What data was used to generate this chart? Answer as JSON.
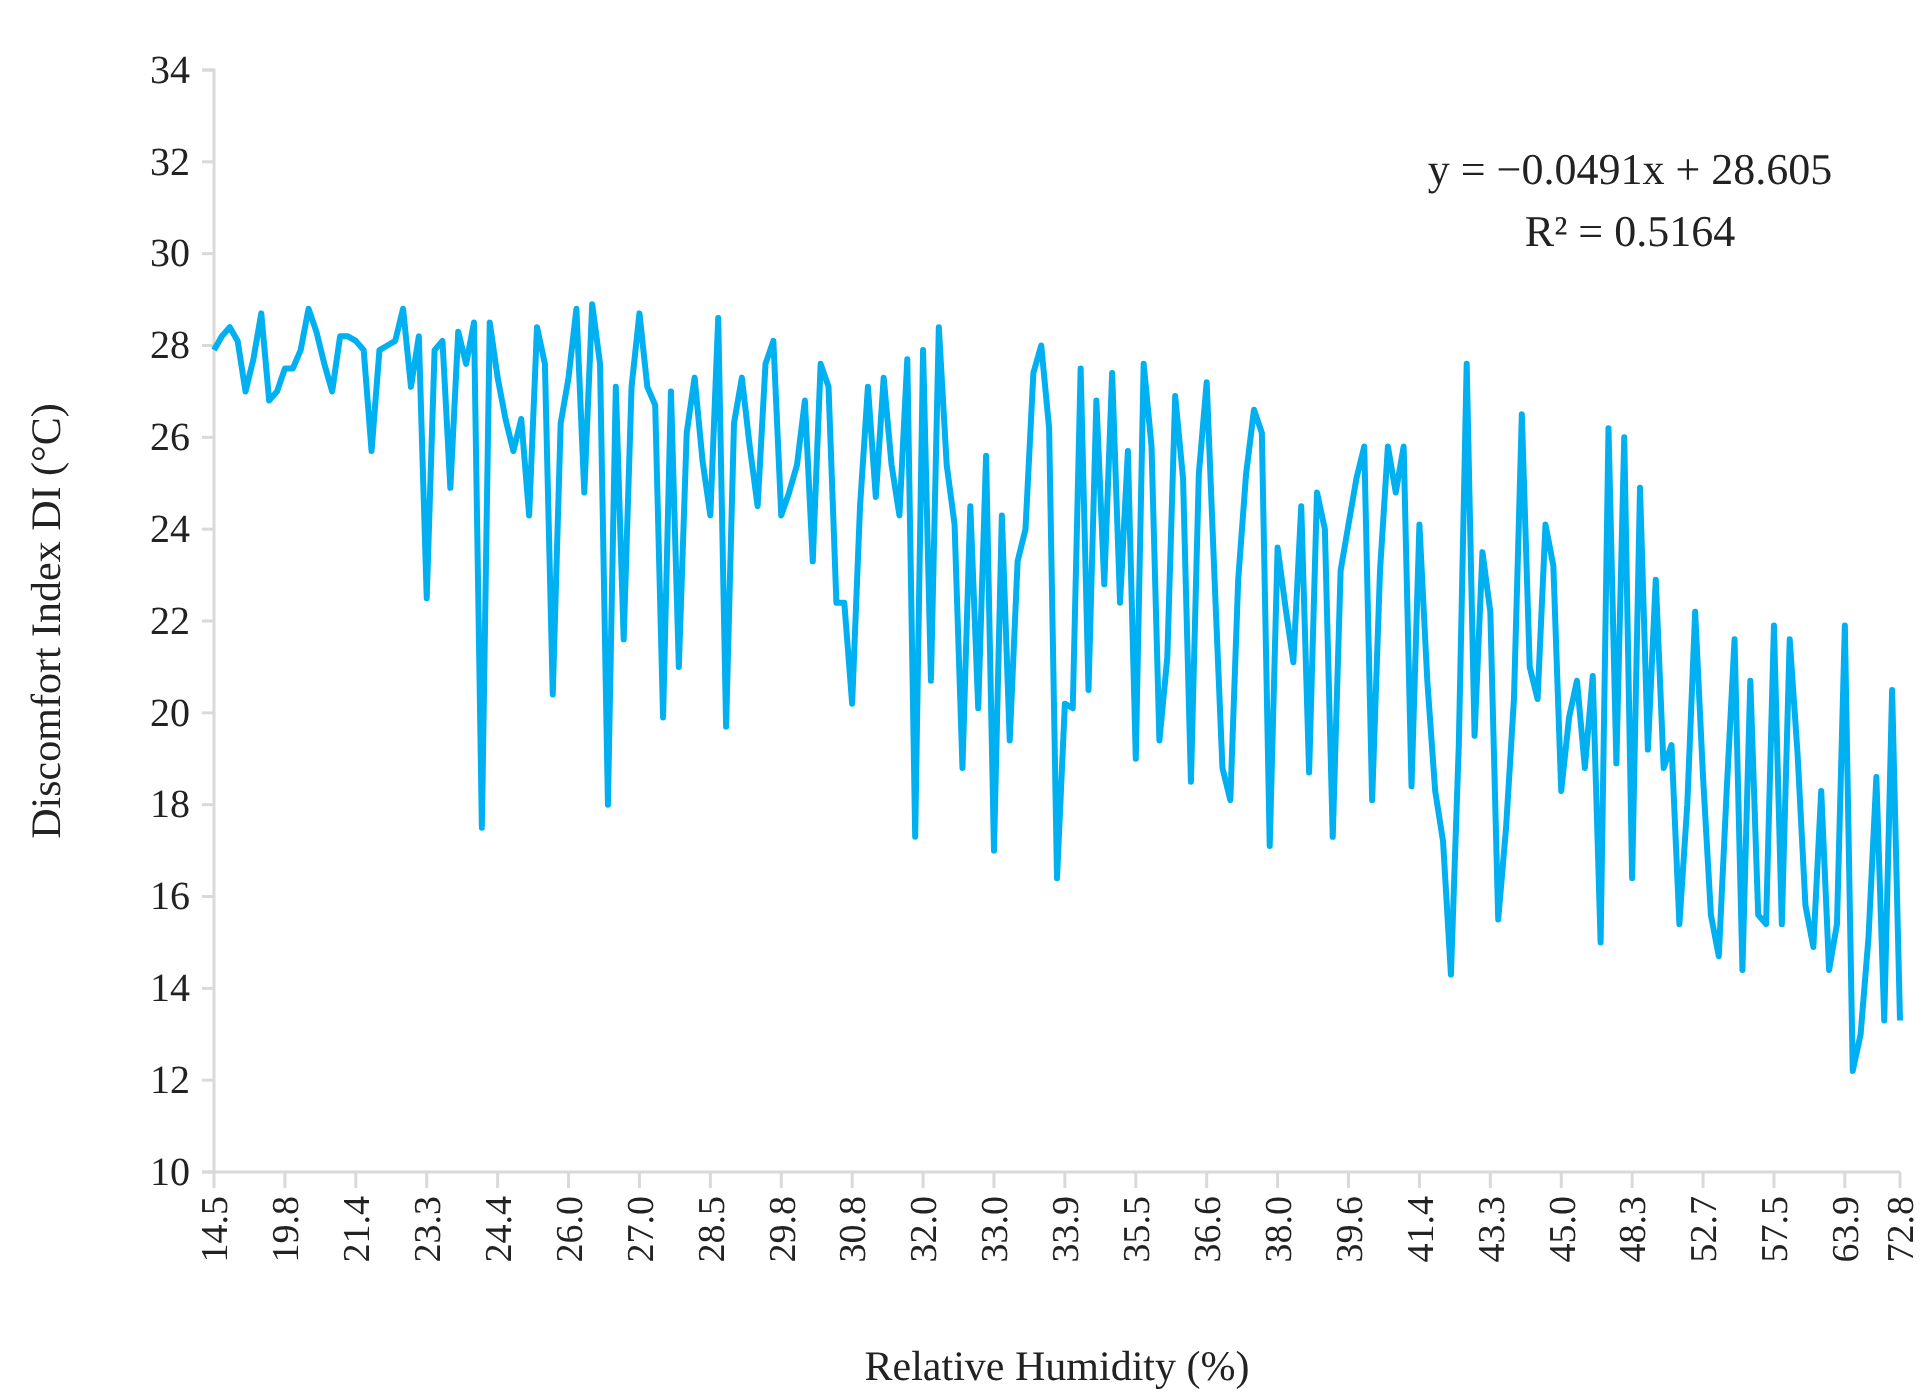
{
  "chart_data": {
    "type": "line",
    "xlabel": "Relative Humidity (%)",
    "ylabel": "Discomfort Index DI (°C)",
    "annotations": [
      "y = −0.0491x + 28.605",
      "R² = 0.5164"
    ],
    "categories": [
      "14.5",
      null,
      null,
      null,
      null,
      null,
      null,
      null,
      null,
      "19.8",
      null,
      null,
      null,
      null,
      null,
      null,
      null,
      null,
      "21.4",
      null,
      null,
      null,
      null,
      null,
      null,
      null,
      null,
      "23.3",
      null,
      null,
      null,
      null,
      null,
      null,
      null,
      null,
      "24.4",
      null,
      null,
      null,
      null,
      null,
      null,
      null,
      null,
      "26.0",
      null,
      null,
      null,
      null,
      null,
      null,
      null,
      null,
      "27.0",
      null,
      null,
      null,
      null,
      null,
      null,
      null,
      null,
      "28.5",
      null,
      null,
      null,
      null,
      null,
      null,
      null,
      null,
      "29.8",
      null,
      null,
      null,
      null,
      null,
      null,
      null,
      null,
      "30.8",
      null,
      null,
      null,
      null,
      null,
      null,
      null,
      null,
      "32.0",
      null,
      null,
      null,
      null,
      null,
      null,
      null,
      null,
      "33.0",
      null,
      null,
      null,
      null,
      null,
      null,
      null,
      null,
      "33.9",
      null,
      null,
      null,
      null,
      null,
      null,
      null,
      null,
      "35.5",
      null,
      null,
      null,
      null,
      null,
      null,
      null,
      null,
      "36.6",
      null,
      null,
      null,
      null,
      null,
      null,
      null,
      null,
      "38.0",
      null,
      null,
      null,
      null,
      null,
      null,
      null,
      null,
      "39.6",
      null,
      null,
      null,
      null,
      null,
      null,
      null,
      null,
      "41.4",
      null,
      null,
      null,
      null,
      null,
      null,
      null,
      null,
      "43.3",
      null,
      null,
      null,
      null,
      null,
      null,
      null,
      null,
      "45.0",
      null,
      null,
      null,
      null,
      null,
      null,
      null,
      null,
      "48.3",
      null,
      null,
      null,
      null,
      null,
      null,
      null,
      null,
      "52.7",
      null,
      null,
      null,
      null,
      null,
      null,
      null,
      null,
      "57.5",
      null,
      null,
      null,
      null,
      null,
      null,
      null,
      null,
      "63.9",
      null,
      null,
      null,
      null,
      null,
      null,
      "72.8"
    ],
    "series": [
      {
        "color": "#00b0f0",
        "values": [
          27.9,
          28.2,
          28.4,
          28.1,
          27.0,
          27.7,
          28.7,
          26.8,
          27.0,
          27.5,
          27.5,
          27.9,
          28.8,
          28.3,
          27.6,
          27.0,
          28.2,
          28.2,
          28.1,
          27.9,
          25.7,
          27.9,
          28.0,
          28.1,
          28.8,
          27.1,
          28.2,
          22.5,
          27.9,
          28.1,
          24.9,
          28.3,
          27.6,
          28.5,
          17.5,
          28.5,
          27.3,
          26.4,
          25.7,
          26.4,
          24.3,
          28.4,
          27.6,
          20.4,
          26.3,
          27.3,
          28.8,
          24.8,
          28.9,
          27.6,
          18.0,
          27.1,
          21.6,
          27.1,
          28.7,
          27.1,
          26.7,
          19.9,
          27.0,
          21.0,
          26.1,
          27.3,
          25.5,
          24.3,
          28.6,
          19.7,
          26.3,
          27.3,
          25.8,
          24.5,
          27.6,
          28.1,
          24.3,
          24.8,
          25.4,
          26.8,
          23.3,
          27.6,
          27.1,
          22.4,
          22.4,
          20.2,
          24.5,
          27.1,
          24.7,
          27.3,
          25.4,
          24.3,
          27.7,
          17.3,
          27.9,
          20.7,
          28.4,
          25.4,
          24.1,
          18.8,
          24.5,
          20.1,
          25.6,
          17.0,
          24.3,
          19.4,
          23.3,
          24.0,
          27.4,
          28.0,
          26.2,
          16.4,
          20.2,
          20.1,
          27.5,
          20.5,
          26.8,
          22.8,
          27.4,
          22.4,
          25.7,
          19.0,
          27.6,
          25.8,
          19.4,
          21.2,
          26.9,
          25.1,
          18.5,
          25.2,
          27.2,
          22.9,
          18.8,
          18.1,
          22.9,
          25.2,
          26.6,
          26.1,
          17.1,
          23.6,
          22.3,
          21.1,
          24.5,
          18.7,
          24.8,
          24.0,
          17.3,
          23.1,
          24.1,
          25.1,
          25.8,
          18.1,
          23.1,
          25.8,
          24.8,
          25.8,
          18.4,
          24.1,
          20.7,
          18.3,
          17.2,
          14.3,
          19.3,
          27.6,
          19.5,
          23.5,
          22.2,
          15.5,
          17.5,
          20.3,
          26.5,
          21.0,
          20.3,
          24.1,
          23.2,
          18.3,
          19.9,
          20.7,
          18.8,
          20.8,
          15.0,
          26.2,
          18.9,
          26.0,
          16.4,
          24.9,
          19.2,
          22.9,
          18.8,
          19.3,
          15.4,
          18.0,
          22.2,
          18.6,
          15.6,
          14.7,
          18.3,
          21.6,
          14.4,
          20.7,
          15.6,
          15.4,
          21.9,
          15.4,
          21.6,
          19.1,
          15.8,
          14.9,
          18.3,
          14.4,
          15.4,
          21.9,
          12.2,
          13.0,
          15.1,
          18.6,
          13.3,
          20.5,
          13.3
        ]
      }
    ],
    "ylim": [
      10,
      34
    ],
    "yticks": [
      10,
      12,
      14,
      16,
      18,
      20,
      22,
      24,
      26,
      28,
      30,
      32,
      34
    ],
    "grid": false,
    "marker": "none",
    "line_style": "solid"
  }
}
